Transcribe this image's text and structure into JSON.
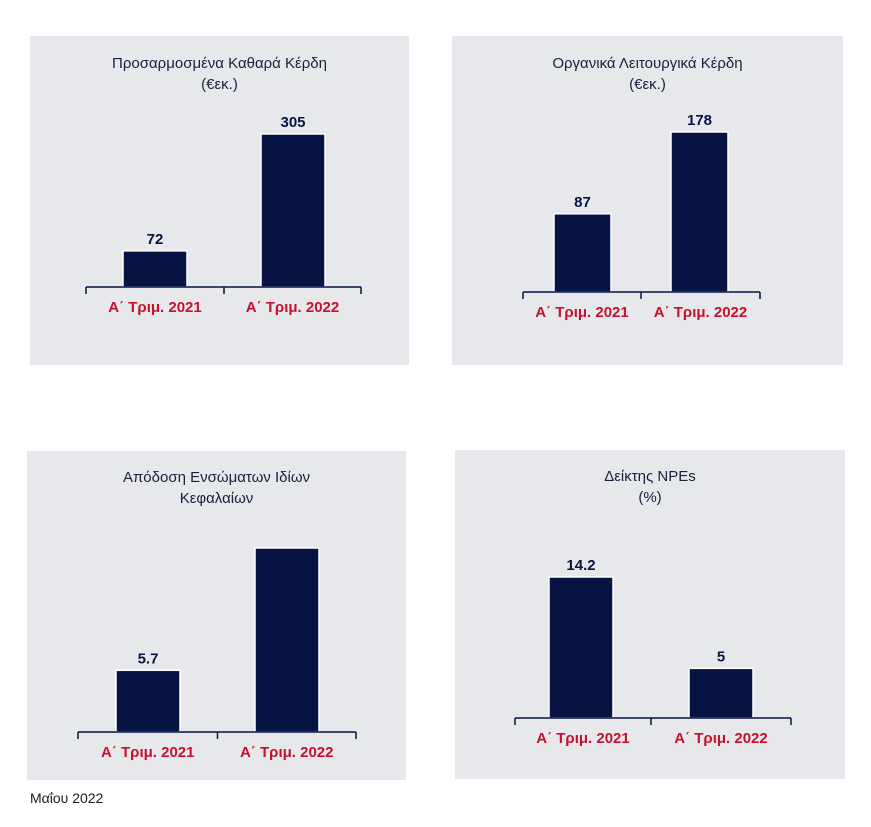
{
  "colors": {
    "bar": "#061343",
    "axis": "#061343",
    "category": "#c8102e",
    "value": "#061343",
    "panel": "#e7e8ec"
  },
  "footer": "Μαΐου 2022",
  "chart_data": [
    {
      "type": "bar",
      "title": "Προσαρμοσμένα Καθαρά Κέρδη",
      "subtitle": "(€εκ.)",
      "categories": [
        "Α΄ Τριμ. 2021",
        "Α΄ Τριμ. 2022"
      ],
      "values": [
        72,
        305
      ],
      "value_labels": [
        "72",
        "305"
      ],
      "ylim": [
        0,
        305
      ],
      "grid": false
    },
    {
      "type": "bar",
      "title": "Οργανικά Λειτουργικά Κέρδη",
      "subtitle": "(€εκ.)",
      "categories": [
        "Α΄ Τριμ. 2021",
        "Α΄ Τριμ. 2022"
      ],
      "values": [
        87,
        178
      ],
      "value_labels": [
        "87",
        "178"
      ],
      "ylim": [
        0,
        178
      ],
      "grid": false
    },
    {
      "type": "bar",
      "title": "Απόδοση Ενσώματων Ιδίων",
      "subtitle": "Κεφαλαίων",
      "categories": [
        "Α΄ Τριμ. 2021",
        "Α΄ Τριμ. 2022"
      ],
      "values": [
        5.7,
        17
      ],
      "value_labels": [
        "5.7",
        ""
      ],
      "ylim": [
        0,
        17
      ],
      "grid": false
    },
    {
      "type": "bar",
      "title": "Δείκτης NPEs",
      "subtitle": "(%)",
      "categories": [
        "Α΄ Τριμ. 2021",
        "Α΄ Τριμ. 2022"
      ],
      "values": [
        14.2,
        5
      ],
      "value_labels": [
        "14.2",
        "5"
      ],
      "ylim": [
        0,
        14.2
      ],
      "grid": false
    }
  ]
}
